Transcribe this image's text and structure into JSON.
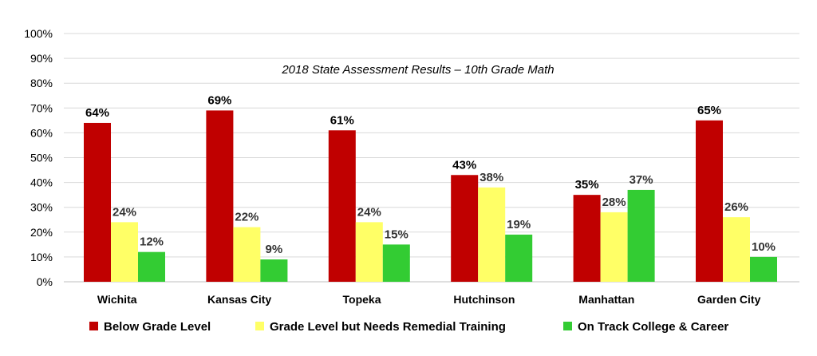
{
  "chart_data": {
    "type": "bar",
    "title": "2018 State Assessment Results – 10th Grade Math",
    "xlabel": "",
    "ylabel": "",
    "ylim": [
      0,
      100
    ],
    "yticks": [
      "0%",
      "10%",
      "20%",
      "30%",
      "40%",
      "50%",
      "60%",
      "70%",
      "80%",
      "90%",
      "100%"
    ],
    "grid": true,
    "legend_position": "bottom",
    "categories": [
      "Wichita",
      "Kansas City",
      "Topeka",
      "Hutchinson",
      "Manhattan",
      "Garden City"
    ],
    "series": [
      {
        "name": "Below Grade Level",
        "color": "#c00000",
        "values": [
          64,
          69,
          61,
          43,
          35,
          65
        ],
        "labels": [
          "64%",
          "69%",
          "61%",
          "43%",
          "35%",
          "65%"
        ]
      },
      {
        "name": "Grade Level but Needs Remedial Training",
        "color": "#ffff66",
        "values": [
          24,
          22,
          24,
          38,
          28,
          26
        ],
        "labels": [
          "24%",
          "22%",
          "24%",
          "38%",
          "28%",
          "26%"
        ]
      },
      {
        "name": "On Track College & Career",
        "color": "#33cc33",
        "values": [
          12,
          9,
          15,
          19,
          37,
          10
        ],
        "labels": [
          "12%",
          "9%",
          "15%",
          "19%",
          "37%",
          "10%"
        ]
      }
    ]
  }
}
